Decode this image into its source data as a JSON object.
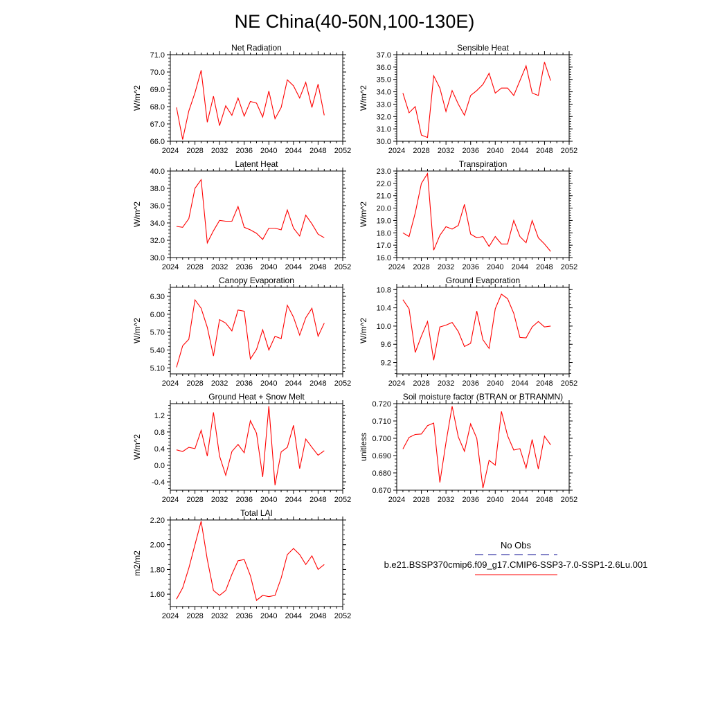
{
  "title": "NE China(40-50N,100-130E)",
  "legend": {
    "obs_label": "No Obs",
    "obs_color": "#3a3aa8",
    "model_label": "b.e21.BSSP370cmip6.f09_g17.CMIP6-SSP3-7.0-SSP1-2.6Lu.001",
    "model_color": "#ff0000"
  },
  "chart_data": [
    {
      "type": "line",
      "title": "Net Radiation",
      "ylabel": "W/m^2",
      "xlim": [
        2024,
        2052
      ],
      "xticks": [
        "2024",
        "2028",
        "2032",
        "2036",
        "2040",
        "2044",
        "2048",
        "2052"
      ],
      "ylim": [
        66.0,
        71.0
      ],
      "yticks": [
        "66.0",
        "67.0",
        "68.0",
        "69.0",
        "70.0",
        "71.0"
      ],
      "x": [
        2025,
        2026,
        2027,
        2028,
        2029,
        2030,
        2031,
        2032,
        2033,
        2034,
        2035,
        2036,
        2037,
        2038,
        2039,
        2040,
        2041,
        2042,
        2043,
        2044,
        2045,
        2046,
        2047,
        2048,
        2049
      ],
      "series": [
        {
          "values": [
            67.95,
            66.1,
            67.75,
            68.8,
            70.1,
            67.1,
            68.6,
            66.9,
            68.05,
            67.5,
            68.5,
            67.45,
            68.3,
            68.2,
            67.4,
            68.9,
            67.3,
            67.95,
            69.55,
            69.2,
            68.5,
            69.4,
            67.95,
            69.3,
            67.5
          ]
        }
      ]
    },
    {
      "type": "line",
      "title": "Sensible Heat",
      "ylabel": "W/m^2",
      "xlim": [
        2024,
        2052
      ],
      "xticks": [
        "2024",
        "2028",
        "2032",
        "2036",
        "2040",
        "2044",
        "2048",
        "2052"
      ],
      "ylim": [
        30.0,
        37.0
      ],
      "yticks": [
        "30.0",
        "31.0",
        "32.0",
        "33.0",
        "34.0",
        "35.0",
        "36.0",
        "37.0"
      ],
      "x": [
        2025,
        2026,
        2027,
        2028,
        2029,
        2030,
        2031,
        2032,
        2033,
        2034,
        2035,
        2036,
        2037,
        2038,
        2039,
        2040,
        2041,
        2042,
        2043,
        2044,
        2045,
        2046,
        2047,
        2048,
        2049
      ],
      "series": [
        {
          "values": [
            33.9,
            32.3,
            32.8,
            30.5,
            30.3,
            35.3,
            34.3,
            32.4,
            34.1,
            33.0,
            32.1,
            33.7,
            34.1,
            34.6,
            35.5,
            33.9,
            34.3,
            34.3,
            33.7,
            34.9,
            36.1,
            33.9,
            33.7,
            36.4,
            34.9
          ]
        }
      ]
    },
    {
      "type": "line",
      "title": "Latent Heat",
      "ylabel": "W/m^2",
      "xlim": [
        2024,
        2052
      ],
      "xticks": [
        "2024",
        "2028",
        "2032",
        "2036",
        "2040",
        "2044",
        "2048",
        "2052"
      ],
      "ylim": [
        30.0,
        40.0
      ],
      "yticks": [
        "30.0",
        "32.0",
        "34.0",
        "36.0",
        "38.0",
        "40.0"
      ],
      "x": [
        2025,
        2026,
        2027,
        2028,
        2029,
        2030,
        2031,
        2032,
        2033,
        2034,
        2035,
        2036,
        2037,
        2038,
        2039,
        2040,
        2041,
        2042,
        2043,
        2044,
        2045,
        2046,
        2047,
        2048,
        2049
      ],
      "series": [
        {
          "values": [
            33.6,
            33.5,
            34.5,
            38.0,
            39.0,
            31.7,
            33.1,
            34.3,
            34.2,
            34.2,
            35.9,
            33.5,
            33.2,
            32.8,
            32.1,
            33.4,
            33.4,
            33.2,
            35.5,
            33.4,
            32.5,
            34.9,
            33.9,
            32.7,
            32.3
          ]
        }
      ]
    },
    {
      "type": "line",
      "title": "Transpiration",
      "ylabel": "W/m^2",
      "xlim": [
        2024,
        2052
      ],
      "xticks": [
        "2024",
        "2028",
        "2032",
        "2036",
        "2040",
        "2044",
        "2048",
        "2052"
      ],
      "ylim": [
        16.0,
        23.0
      ],
      "yticks": [
        "16.0",
        "17.0",
        "18.0",
        "19.0",
        "20.0",
        "21.0",
        "22.0",
        "23.0"
      ],
      "x": [
        2025,
        2026,
        2027,
        2028,
        2029,
        2030,
        2031,
        2032,
        2033,
        2034,
        2035,
        2036,
        2037,
        2038,
        2039,
        2040,
        2041,
        2042,
        2043,
        2044,
        2045,
        2046,
        2047,
        2048,
        2049
      ],
      "series": [
        {
          "values": [
            18.0,
            17.7,
            19.6,
            22.0,
            22.8,
            16.6,
            17.8,
            18.5,
            18.3,
            18.6,
            20.3,
            17.9,
            17.6,
            17.7,
            16.9,
            17.7,
            17.1,
            17.1,
            19.0,
            17.7,
            17.2,
            19.0,
            17.6,
            17.1,
            16.5
          ]
        }
      ]
    },
    {
      "type": "line",
      "title": "Canopy Evaporation",
      "ylabel": "W/m^2",
      "xlim": [
        2024,
        2052
      ],
      "xticks": [
        "2024",
        "2028",
        "2032",
        "2036",
        "2040",
        "2044",
        "2048",
        "2052"
      ],
      "ylim": [
        5.0,
        6.45
      ],
      "yticks": [
        "5.10",
        "5.40",
        "5.70",
        "6.00",
        "6.30"
      ],
      "ytick_values": [
        5.1,
        5.4,
        5.7,
        6.0,
        6.3
      ],
      "x": [
        2025,
        2026,
        2027,
        2028,
        2029,
        2030,
        2031,
        2032,
        2033,
        2034,
        2035,
        2036,
        2037,
        2038,
        2039,
        2040,
        2041,
        2042,
        2043,
        2044,
        2045,
        2046,
        2047,
        2048,
        2049
      ],
      "series": [
        {
          "values": [
            5.11,
            5.47,
            5.58,
            6.24,
            6.1,
            5.78,
            5.3,
            5.91,
            5.85,
            5.72,
            6.07,
            6.05,
            5.25,
            5.41,
            5.74,
            5.4,
            5.63,
            5.59,
            6.15,
            5.95,
            5.65,
            5.94,
            6.1,
            5.63,
            5.85
          ]
        }
      ]
    },
    {
      "type": "line",
      "title": "Ground Evaporation",
      "ylabel": "W/m^2",
      "xlim": [
        2024,
        2052
      ],
      "xticks": [
        "2024",
        "2028",
        "2032",
        "2036",
        "2040",
        "2044",
        "2048",
        "2052"
      ],
      "ylim": [
        8.95,
        10.85
      ],
      "yticks": [
        "9.2",
        "9.6",
        "10.0",
        "10.4",
        "10.8"
      ],
      "ytick_values": [
        9.2,
        9.6,
        10.0,
        10.4,
        10.8
      ],
      "x": [
        2025,
        2026,
        2027,
        2028,
        2029,
        2030,
        2031,
        2032,
        2033,
        2034,
        2035,
        2036,
        2037,
        2038,
        2039,
        2040,
        2041,
        2042,
        2043,
        2044,
        2045,
        2046,
        2047,
        2048,
        2049
      ],
      "series": [
        {
          "values": [
            10.58,
            10.38,
            9.42,
            9.78,
            10.1,
            9.25,
            9.98,
            10.02,
            10.08,
            9.88,
            9.55,
            9.62,
            10.33,
            9.7,
            9.51,
            10.38,
            10.7,
            10.6,
            10.28,
            9.75,
            9.74,
            9.98,
            10.1,
            9.98,
            10.0
          ]
        }
      ]
    },
    {
      "type": "line",
      "title": "Ground Heat + Snow Melt",
      "ylabel": "W/m^2",
      "xlim": [
        2024,
        2052
      ],
      "xticks": [
        "2024",
        "2028",
        "2032",
        "2036",
        "2040",
        "2044",
        "2048",
        "2052"
      ],
      "ylim": [
        -0.6,
        1.48
      ],
      "yticks": [
        "-0.4",
        "0.0",
        "0.4",
        "0.8",
        "1.2"
      ],
      "ytick_values": [
        -0.4,
        0.0,
        0.4,
        0.8,
        1.2
      ],
      "x": [
        2025,
        2026,
        2027,
        2028,
        2029,
        2030,
        2031,
        2032,
        2033,
        2034,
        2035,
        2036,
        2037,
        2038,
        2039,
        2040,
        2041,
        2042,
        2043,
        2044,
        2045,
        2046,
        2047,
        2048,
        2049
      ],
      "series": [
        {
          "values": [
            0.37,
            0.33,
            0.43,
            0.4,
            0.84,
            0.22,
            1.27,
            0.22,
            -0.24,
            0.33,
            0.5,
            0.3,
            1.07,
            0.77,
            -0.28,
            1.42,
            -0.48,
            0.32,
            0.43,
            0.96,
            -0.08,
            0.63,
            0.43,
            0.24,
            0.35
          ]
        }
      ]
    },
    {
      "type": "line",
      "title": "Soil moisture factor (BTRAN or BTRANMN)",
      "ylabel": "unitless",
      "xlim": [
        2024,
        2052
      ],
      "xticks": [
        "2024",
        "2028",
        "2032",
        "2036",
        "2040",
        "2044",
        "2048",
        "2052"
      ],
      "ylim": [
        0.67,
        0.72
      ],
      "yticks": [
        "0.670",
        "0.680",
        "0.690",
        "0.700",
        "0.710",
        "0.720"
      ],
      "x": [
        2025,
        2026,
        2027,
        2028,
        2029,
        2030,
        2031,
        2032,
        2033,
        2034,
        2035,
        2036,
        2037,
        2038,
        2039,
        2040,
        2041,
        2042,
        2043,
        2044,
        2045,
        2046,
        2047,
        2048,
        2049
      ],
      "series": [
        {
          "values": [
            0.6938,
            0.7005,
            0.7022,
            0.7025,
            0.7073,
            0.7088,
            0.6745,
            0.6975,
            0.7185,
            0.7008,
            0.6925,
            0.7083,
            0.7,
            0.6712,
            0.6873,
            0.6845,
            0.7155,
            0.7015,
            0.6932,
            0.694,
            0.6828,
            0.6993,
            0.6823,
            0.7012,
            0.6962
          ]
        }
      ]
    },
    {
      "type": "line",
      "title": "Total LAI",
      "ylabel": "m2/m2",
      "xlim": [
        2024,
        2052
      ],
      "xticks": [
        "2024",
        "2028",
        "2032",
        "2036",
        "2040",
        "2044",
        "2048",
        "2052"
      ],
      "ylim": [
        1.5,
        2.2
      ],
      "yticks": [
        "1.60",
        "1.80",
        "2.00",
        "2.20"
      ],
      "ytick_values": [
        1.6,
        1.8,
        2.0,
        2.2
      ],
      "x": [
        2025,
        2026,
        2027,
        2028,
        2029,
        2030,
        2031,
        2032,
        2033,
        2034,
        2035,
        2036,
        2037,
        2038,
        2039,
        2040,
        2041,
        2042,
        2043,
        2044,
        2045,
        2046,
        2047,
        2048,
        2049
      ],
      "series": [
        {
          "values": [
            1.56,
            1.65,
            1.81,
            2.0,
            2.19,
            1.88,
            1.63,
            1.59,
            1.63,
            1.76,
            1.87,
            1.88,
            1.75,
            1.55,
            1.59,
            1.58,
            1.59,
            1.73,
            1.92,
            1.97,
            1.92,
            1.84,
            1.91,
            1.8,
            1.84
          ]
        }
      ]
    }
  ]
}
